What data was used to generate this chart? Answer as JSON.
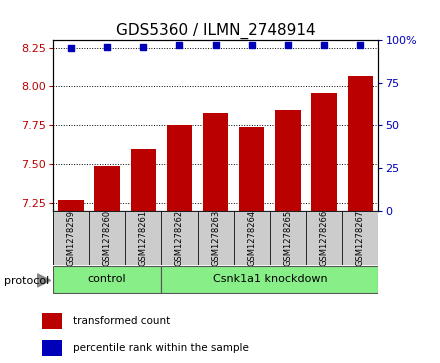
{
  "title": "GDS5360 / ILMN_2748914",
  "samples": [
    "GSM1278259",
    "GSM1278260",
    "GSM1278261",
    "GSM1278262",
    "GSM1278263",
    "GSM1278264",
    "GSM1278265",
    "GSM1278266",
    "GSM1278267"
  ],
  "transformed_counts": [
    7.27,
    7.49,
    7.6,
    7.75,
    7.83,
    7.74,
    7.85,
    7.96,
    8.07
  ],
  "percentile_ranks": [
    95,
    96,
    96,
    97,
    97,
    97,
    97,
    97,
    97
  ],
  "ylim_left": [
    7.2,
    8.3
  ],
  "ylim_right": [
    0,
    100
  ],
  "yticks_left": [
    7.25,
    7.5,
    7.75,
    8.0,
    8.25
  ],
  "yticks_right": [
    0,
    25,
    50,
    75,
    100
  ],
  "bar_color": "#bb0000",
  "dot_color": "#0000bb",
  "bar_width": 0.7,
  "protocol_label": "protocol",
  "legend_bar_label": "transformed count",
  "legend_dot_label": "percentile rank within the sample",
  "title_fontsize": 11,
  "tick_fontsize": 8,
  "sample_box_color": "#cccccc",
  "green_color": "#88ee88",
  "control_label": "control",
  "knockdown_label": "Csnk1a1 knockdown",
  "control_count": 3,
  "knockdown_count": 6
}
